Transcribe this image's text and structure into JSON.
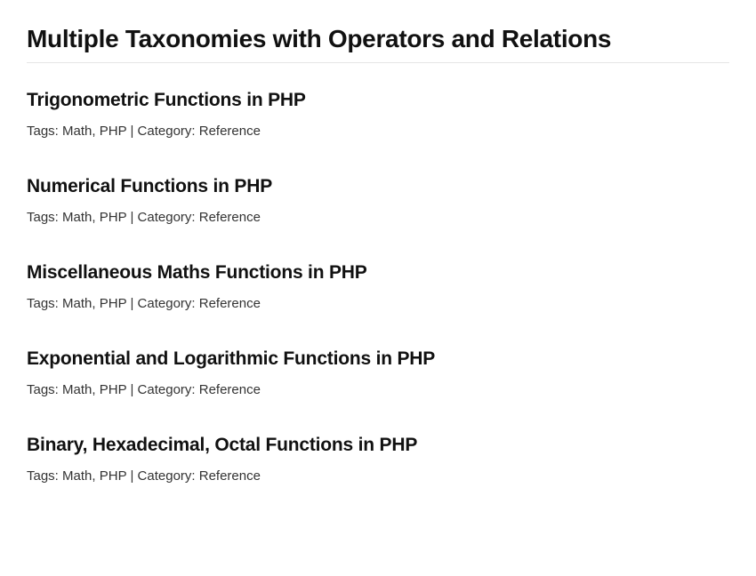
{
  "page": {
    "heading": "Multiple Taxonomies with Operators and Relations"
  },
  "metaLabels": {
    "tagsPrefix": "Tags: ",
    "categoryPrefix": "Category: ",
    "separator": " | ",
    "itemSeparator": ", "
  },
  "posts": [
    {
      "title": "Trigonometric Functions in PHP",
      "tags": [
        "Math",
        "PHP"
      ],
      "category": "Reference"
    },
    {
      "title": "Numerical Functions in PHP",
      "tags": [
        "Math",
        "PHP"
      ],
      "category": "Reference"
    },
    {
      "title": "Miscellaneous Maths Functions in PHP",
      "tags": [
        "Math",
        "PHP"
      ],
      "category": "Reference"
    },
    {
      "title": "Exponential and Logarithmic Functions in PHP",
      "tags": [
        "Math",
        "PHP"
      ],
      "category": "Reference"
    },
    {
      "title": "Binary, Hexadecimal, Octal Functions in PHP",
      "tags": [
        "Math",
        "PHP"
      ],
      "category": "Reference"
    }
  ]
}
